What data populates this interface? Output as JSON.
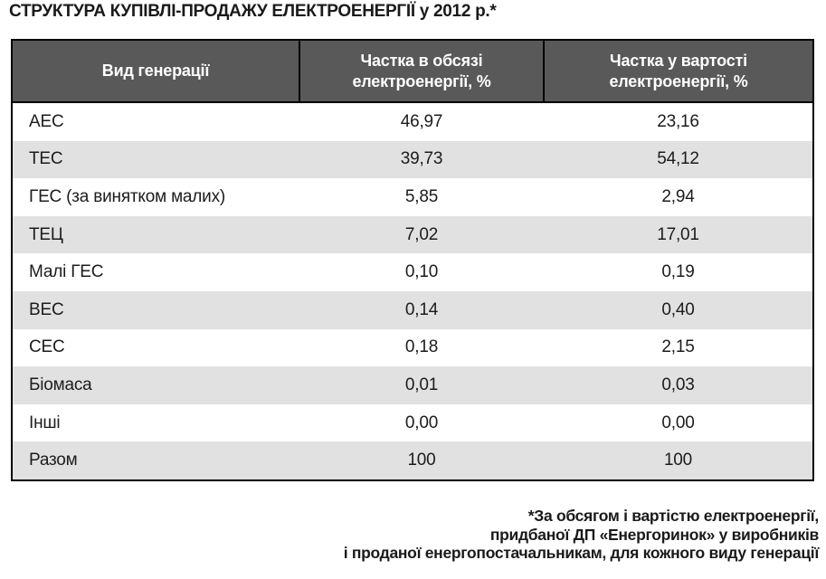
{
  "title": "СТРУКТУРА КУПІВЛІ-ПРОДАЖУ ЕЛЕКТРОЕНЕРГІЇ у 2012 р.*",
  "table": {
    "columns": [
      "Вид генерації",
      "Частка в обсязі електроенергії, %",
      "Частка у вартості електроенергії, %"
    ],
    "rows": [
      [
        "АЕС",
        "46,97",
        "23,16"
      ],
      [
        "ТЕС",
        "39,73",
        "54,12"
      ],
      [
        "ГЕС (за винятком малих)",
        "5,85",
        "2,94"
      ],
      [
        "ТЕЦ",
        "7,02",
        "17,01"
      ],
      [
        "Малі ГЕС",
        "0,10",
        "0,19"
      ],
      [
        "ВЕС",
        "0,14",
        "0,40"
      ],
      [
        "СЕС",
        "0,18",
        "2,15"
      ],
      [
        "Біомаса",
        "0,01",
        "0,03"
      ],
      [
        "Інші",
        "0,00",
        "0,00"
      ],
      [
        "Разом",
        "100",
        "100"
      ]
    ]
  },
  "footnote": {
    "lines": [
      "*За обсягом і вартістю електроенергії,",
      "придбаної ДП «Енергоринок» у виробників",
      "і проданої енергопостачальникам, для кожного виду генерації"
    ]
  },
  "colors": {
    "header_bg": "#595959",
    "header_text": "#ffffff",
    "row_alt_bg": "#e1e1e1",
    "border": "#000000",
    "text": "#1c1c1c"
  }
}
